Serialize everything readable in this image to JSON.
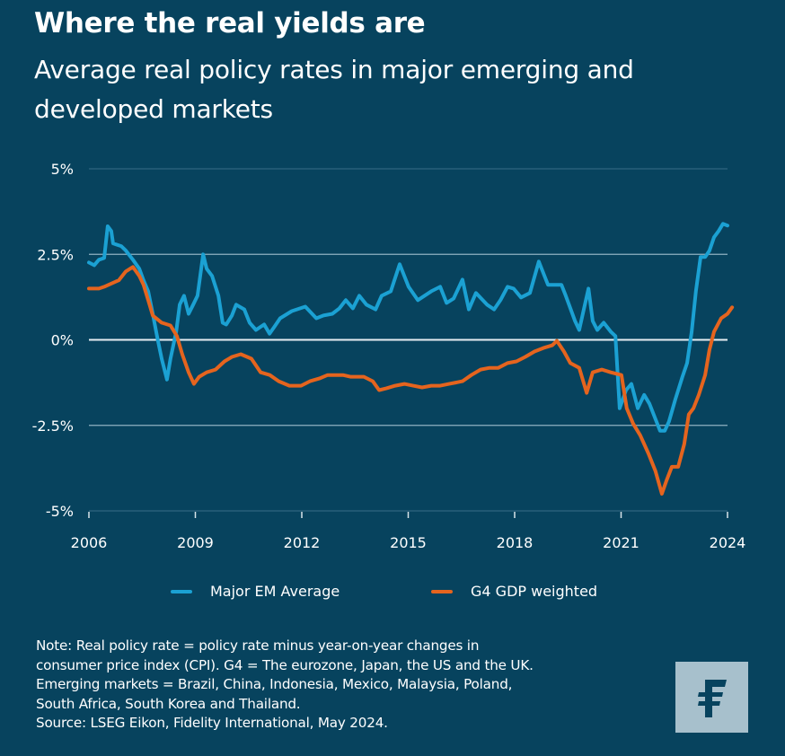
{
  "header": {
    "title": "Where the real yields are",
    "subtitle": "Average real policy rates in major emerging and developed markets"
  },
  "colors": {
    "background": "#07435e",
    "em_series": "#1ba1d3",
    "g4_series": "#e5641e",
    "gridline": "#8fb2c2",
    "logo_bg": "#a7c0cc",
    "logo_fg": "#07435e"
  },
  "legend": {
    "items": [
      {
        "label": "Major EM Average",
        "color": "#1ba1d3"
      },
      {
        "label": "G4 GDP weighted",
        "color": "#e5641e"
      }
    ]
  },
  "footer": {
    "note_lines": [
      "Note: Real policy rate = policy rate minus year-on-year changes in",
      "consumer price index (CPI). G4 = The eurozone, Japan, the US and the UK.",
      "Emerging markets = Brazil, China, Indonesia, Mexico, Malaysia, Poland,",
      "South Africa, South Korea and Thailand.",
      "Source: LSEG Eikon, Fidelity International, May 2024."
    ],
    "logo_icon": "fidelity-f-logo"
  },
  "chart_data": {
    "type": "line",
    "title": "Where the real yields are",
    "subtitle": "Average real policy rates in major emerging and developed markets",
    "xlabel": "",
    "ylabel": "",
    "xlim": [
      2006,
      2024
    ],
    "ylim": [
      -5,
      5
    ],
    "x_ticks": [
      2006,
      2009,
      2012,
      2015,
      2018,
      2021,
      2024
    ],
    "x_tick_labels": [
      "2006",
      "2009",
      "2012",
      "2015",
      "2018",
      "2021",
      "2024"
    ],
    "y_ticks": [
      5,
      2.5,
      0,
      -2.5,
      -5
    ],
    "y_tick_labels": [
      "5%",
      "2.5%",
      "0%",
      "-2.5%",
      "-5%"
    ],
    "grid": "horizontal",
    "legend_position": "bottom",
    "series": [
      {
        "name": "Major EM Average",
        "color": "#1ba1d3",
        "points": [
          [
            2006.0,
            2.26
          ],
          [
            2006.15,
            2.18
          ],
          [
            2006.28,
            2.34
          ],
          [
            2006.43,
            2.39
          ],
          [
            2006.53,
            3.32
          ],
          [
            2006.63,
            3.18
          ],
          [
            2006.68,
            2.82
          ],
          [
            2006.91,
            2.74
          ],
          [
            2007.04,
            2.61
          ],
          [
            2007.24,
            2.34
          ],
          [
            2007.42,
            2.08
          ],
          [
            2007.54,
            1.74
          ],
          [
            2007.67,
            1.42
          ],
          [
            2007.8,
            0.76
          ],
          [
            2007.92,
            0.11
          ],
          [
            2008.05,
            -0.55
          ],
          [
            2008.2,
            -1.16
          ],
          [
            2008.3,
            -0.55
          ],
          [
            2008.46,
            0.24
          ],
          [
            2008.56,
            1.03
          ],
          [
            2008.68,
            1.29
          ],
          [
            2008.81,
            0.76
          ],
          [
            2008.94,
            1.03
          ],
          [
            2009.06,
            1.29
          ],
          [
            2009.22,
            2.5
          ],
          [
            2009.32,
            2.08
          ],
          [
            2009.47,
            1.87
          ],
          [
            2009.65,
            1.29
          ],
          [
            2009.77,
            0.5
          ],
          [
            2009.87,
            0.45
          ],
          [
            2010.03,
            0.71
          ],
          [
            2010.15,
            1.03
          ],
          [
            2010.38,
            0.89
          ],
          [
            2010.53,
            0.5
          ],
          [
            2010.71,
            0.29
          ],
          [
            2010.94,
            0.45
          ],
          [
            2011.09,
            0.18
          ],
          [
            2011.22,
            0.37
          ],
          [
            2011.39,
            0.63
          ],
          [
            2011.72,
            0.84
          ],
          [
            2012.1,
            0.97
          ],
          [
            2012.41,
            0.63
          ],
          [
            2012.61,
            0.71
          ],
          [
            2012.86,
            0.76
          ],
          [
            2013.06,
            0.92
          ],
          [
            2013.24,
            1.16
          ],
          [
            2013.44,
            0.92
          ],
          [
            2013.62,
            1.29
          ],
          [
            2013.82,
            1.03
          ],
          [
            2014.08,
            0.89
          ],
          [
            2014.25,
            1.29
          ],
          [
            2014.51,
            1.42
          ],
          [
            2014.76,
            2.21
          ],
          [
            2015.01,
            1.55
          ],
          [
            2015.27,
            1.16
          ],
          [
            2015.65,
            1.42
          ],
          [
            2015.9,
            1.55
          ],
          [
            2016.08,
            1.08
          ],
          [
            2016.28,
            1.21
          ],
          [
            2016.53,
            1.76
          ],
          [
            2016.71,
            0.89
          ],
          [
            2016.91,
            1.37
          ],
          [
            2017.22,
            1.03
          ],
          [
            2017.42,
            0.89
          ],
          [
            2017.6,
            1.16
          ],
          [
            2017.8,
            1.55
          ],
          [
            2017.97,
            1.5
          ],
          [
            2018.18,
            1.24
          ],
          [
            2018.43,
            1.37
          ],
          [
            2018.68,
            2.29
          ],
          [
            2018.94,
            1.61
          ],
          [
            2019.32,
            1.61
          ],
          [
            2019.44,
            1.29
          ],
          [
            2019.7,
            0.55
          ],
          [
            2019.82,
            0.29
          ],
          [
            2019.95,
            0.89
          ],
          [
            2020.08,
            1.5
          ],
          [
            2020.2,
            0.55
          ],
          [
            2020.33,
            0.29
          ],
          [
            2020.51,
            0.5
          ],
          [
            2020.71,
            0.24
          ],
          [
            2020.84,
            0.11
          ],
          [
            2020.96,
            -2.0
          ],
          [
            2021.14,
            -1.47
          ],
          [
            2021.29,
            -1.29
          ],
          [
            2021.47,
            -2.0
          ],
          [
            2021.65,
            -1.61
          ],
          [
            2021.8,
            -1.87
          ],
          [
            2022.1,
            -2.66
          ],
          [
            2022.23,
            -2.66
          ],
          [
            2022.35,
            -2.39
          ],
          [
            2022.53,
            -1.74
          ],
          [
            2022.73,
            -1.08
          ],
          [
            2022.86,
            -0.68
          ],
          [
            2022.99,
            0.24
          ],
          [
            2023.11,
            1.42
          ],
          [
            2023.24,
            2.42
          ],
          [
            2023.37,
            2.42
          ],
          [
            2023.49,
            2.61
          ],
          [
            2023.62,
            3.0
          ],
          [
            2023.75,
            3.18
          ],
          [
            2023.87,
            3.39
          ],
          [
            2024.0,
            3.34
          ]
        ]
      },
      {
        "name": "G4 GDP weighted",
        "color": "#e5641e",
        "points": [
          [
            2006.0,
            1.5
          ],
          [
            2006.28,
            1.5
          ],
          [
            2006.43,
            1.55
          ],
          [
            2006.66,
            1.66
          ],
          [
            2006.84,
            1.74
          ],
          [
            2007.04,
            2.0
          ],
          [
            2007.24,
            2.13
          ],
          [
            2007.42,
            1.87
          ],
          [
            2007.54,
            1.61
          ],
          [
            2007.67,
            1.16
          ],
          [
            2007.8,
            0.71
          ],
          [
            2008.05,
            0.5
          ],
          [
            2008.3,
            0.42
          ],
          [
            2008.48,
            0.11
          ],
          [
            2008.63,
            -0.42
          ],
          [
            2008.81,
            -0.95
          ],
          [
            2008.96,
            -1.29
          ],
          [
            2009.11,
            -1.08
          ],
          [
            2009.32,
            -0.95
          ],
          [
            2009.57,
            -0.87
          ],
          [
            2009.82,
            -0.63
          ],
          [
            2010.03,
            -0.5
          ],
          [
            2010.28,
            -0.42
          ],
          [
            2010.58,
            -0.55
          ],
          [
            2010.84,
            -0.95
          ],
          [
            2011.1,
            -1.03
          ],
          [
            2011.35,
            -1.21
          ],
          [
            2011.65,
            -1.34
          ],
          [
            2011.98,
            -1.34
          ],
          [
            2012.23,
            -1.21
          ],
          [
            2012.49,
            -1.13
          ],
          [
            2012.73,
            -1.03
          ],
          [
            2013.16,
            -1.03
          ],
          [
            2013.37,
            -1.08
          ],
          [
            2013.75,
            -1.08
          ],
          [
            2014.0,
            -1.21
          ],
          [
            2014.18,
            -1.47
          ],
          [
            2014.38,
            -1.42
          ],
          [
            2014.63,
            -1.34
          ],
          [
            2014.89,
            -1.29
          ],
          [
            2015.14,
            -1.34
          ],
          [
            2015.39,
            -1.39
          ],
          [
            2015.65,
            -1.34
          ],
          [
            2015.9,
            -1.34
          ],
          [
            2016.15,
            -1.29
          ],
          [
            2016.53,
            -1.21
          ],
          [
            2016.78,
            -1.03
          ],
          [
            2017.04,
            -0.87
          ],
          [
            2017.29,
            -0.82
          ],
          [
            2017.54,
            -0.82
          ],
          [
            2017.8,
            -0.68
          ],
          [
            2018.05,
            -0.63
          ],
          [
            2018.3,
            -0.5
          ],
          [
            2018.56,
            -0.34
          ],
          [
            2018.81,
            -0.24
          ],
          [
            2019.06,
            -0.16
          ],
          [
            2019.19,
            -0.03
          ],
          [
            2019.39,
            -0.34
          ],
          [
            2019.57,
            -0.68
          ],
          [
            2019.82,
            -0.82
          ],
          [
            2020.03,
            -1.55
          ],
          [
            2020.2,
            -0.95
          ],
          [
            2020.46,
            -0.87
          ],
          [
            2020.71,
            -0.95
          ],
          [
            2021.01,
            -1.03
          ],
          [
            2021.16,
            -2.0
          ],
          [
            2021.34,
            -2.45
          ],
          [
            2021.54,
            -2.79
          ],
          [
            2021.77,
            -3.32
          ],
          [
            2021.97,
            -3.84
          ],
          [
            2022.15,
            -4.5
          ],
          [
            2022.28,
            -4.11
          ],
          [
            2022.43,
            -3.71
          ],
          [
            2022.61,
            -3.71
          ],
          [
            2022.78,
            -3.05
          ],
          [
            2022.91,
            -2.18
          ],
          [
            2023.04,
            -2.0
          ],
          [
            2023.19,
            -1.61
          ],
          [
            2023.37,
            -1.03
          ],
          [
            2023.49,
            -0.29
          ],
          [
            2023.62,
            0.24
          ],
          [
            2023.82,
            0.63
          ],
          [
            2024.0,
            0.76
          ],
          [
            2024.13,
            0.95
          ]
        ]
      }
    ]
  }
}
